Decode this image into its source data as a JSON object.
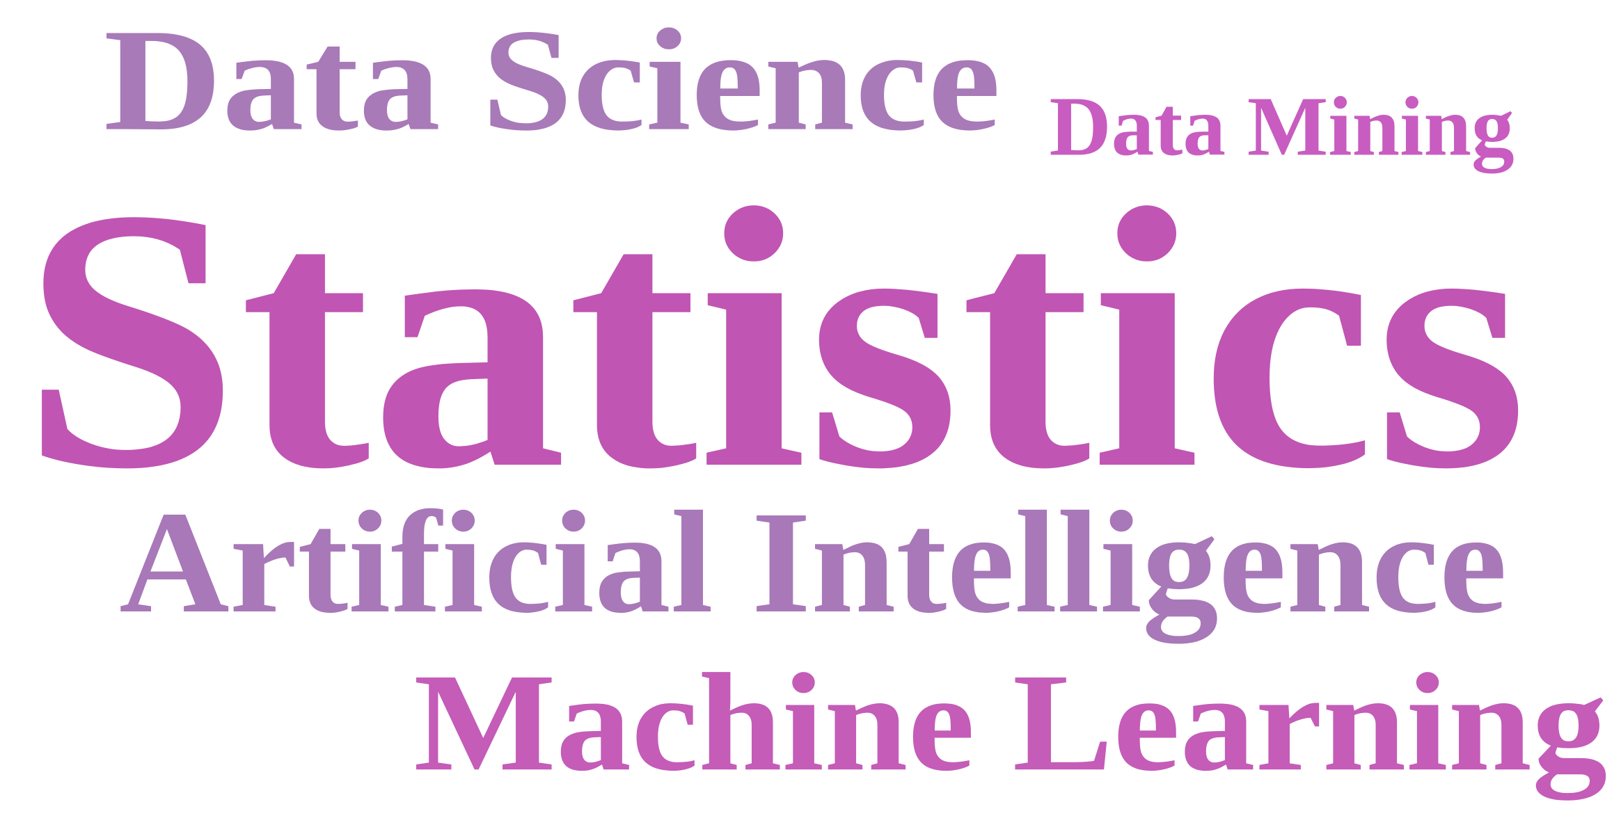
{
  "words": [
    {
      "text": "Data Science"
    },
    {
      "text": "Data Mining"
    },
    {
      "text": "Statistics"
    },
    {
      "text": "Artificial Intelligence"
    },
    {
      "text": "Machine Learning"
    }
  ]
}
